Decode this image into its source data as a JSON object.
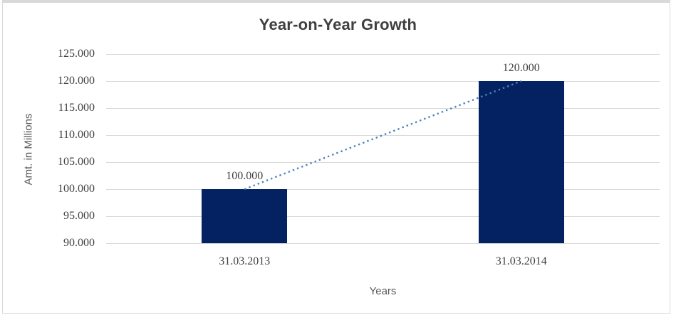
{
  "chart_data": {
    "type": "bar",
    "title": "Year-on-Year Growth",
    "xlabel": "Years",
    "ylabel": "Amt. in Millions",
    "categories": [
      "31.03.2013",
      "31.03.2014"
    ],
    "series": [
      {
        "name": "Amount",
        "type": "bar",
        "values": [
          100,
          120
        ],
        "data_labels": [
          "100.000",
          "120.000"
        ],
        "color": "#042261"
      },
      {
        "name": "Trend",
        "type": "dotted_line",
        "values": [
          100,
          120
        ],
        "color": "#4f81bd"
      }
    ],
    "ylim": [
      90,
      125
    ],
    "yticks": [
      {
        "value": 90,
        "label": "90.000"
      },
      {
        "value": 95,
        "label": "95.000"
      },
      {
        "value": 100,
        "label": "100.000"
      },
      {
        "value": 105,
        "label": "105.000"
      },
      {
        "value": 110,
        "label": "110.000"
      },
      {
        "value": 115,
        "label": "115.000"
      },
      {
        "value": 120,
        "label": "120.000"
      },
      {
        "value": 125,
        "label": "125.000"
      }
    ],
    "grid": true,
    "legend_position": "none",
    "colors": {
      "gridline": "#d9d9d9",
      "title_text": "#3f3f3f",
      "tick_text": "#404040",
      "axis_title_text": "#595959",
      "background": "#ffffff",
      "frame_border": "#d9d9d9"
    }
  }
}
